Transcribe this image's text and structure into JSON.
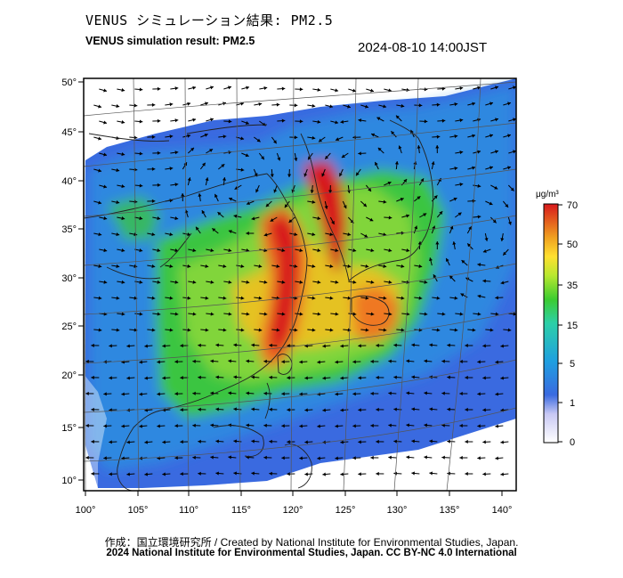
{
  "header": {
    "title_jp": "VENUS シミュレーション結果: PM2.5",
    "title_en": "VENUS simulation result: PM2.5",
    "timestamp": "2024-08-10 14:00JST"
  },
  "map": {
    "lat_labels": [
      "50°",
      "45°",
      "40°",
      "35°",
      "30°",
      "25°",
      "20°",
      "15°",
      "10°"
    ],
    "lon_labels": [
      "100°",
      "105°",
      "110°",
      "115°",
      "120°",
      "125°",
      "130°",
      "135°",
      "140°"
    ],
    "colors": {
      "ocean_wind": "#000000",
      "grid": "#555555"
    }
  },
  "colorbar": {
    "unit": "μg/m³",
    "ticks": [
      "70",
      "50",
      "35",
      "15",
      "5",
      "1",
      "0"
    ],
    "colors": [
      "#d7191c",
      "#f0a020",
      "#ffff30",
      "#3ccc30",
      "#18b4c0",
      "#2a5ad8",
      "#ffffff"
    ]
  },
  "footer": {
    "credit_line1": "作成：国立環境研究所 / Created by National Institute for Environmental Studies, Japan.",
    "credit_line2": "2024 National Institute for Environmental Studies, Japan. CC BY-NC 4.0 International"
  }
}
